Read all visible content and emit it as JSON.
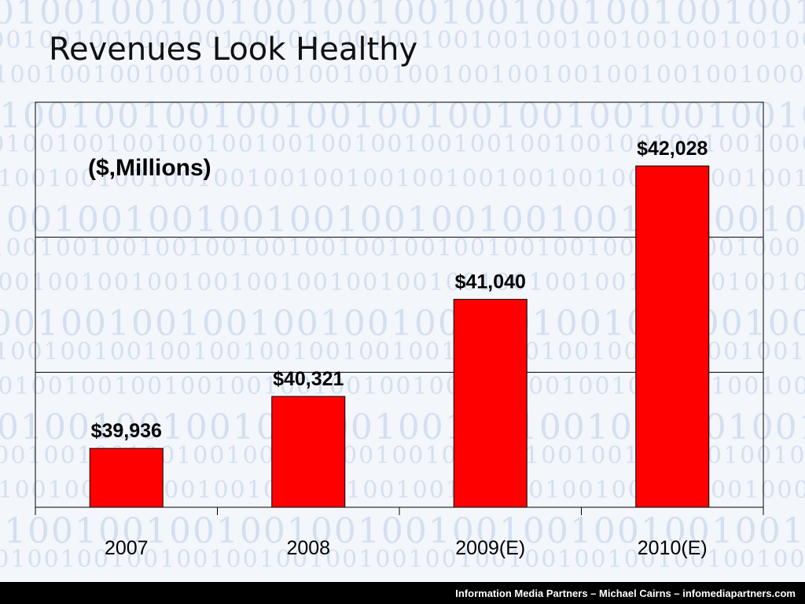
{
  "slide": {
    "title": "Revenues Look Healthy",
    "footer": "Information Media Partners – Michael Cairns – infomediapartners.com",
    "background_motif": "binary-digits"
  },
  "chart_data": {
    "type": "bar",
    "categories": [
      "2007",
      "2008",
      "2009(E)",
      "2010(E)"
    ],
    "values": [
      39936,
      40321,
      41040,
      42028
    ],
    "value_labels": [
      "$39,936",
      "$40,321",
      "$41,040",
      "$42,028"
    ],
    "annotation": "($,Millions)",
    "title": "",
    "xlabel": "",
    "ylabel": "",
    "ylim": [
      39500,
      42500
    ],
    "y_gridlines": [
      40500,
      41500
    ],
    "grid": true,
    "legend": "none",
    "colors": {
      "bar": "#ff0000",
      "bar_edge": "#000000",
      "axis": "#000000"
    }
  }
}
